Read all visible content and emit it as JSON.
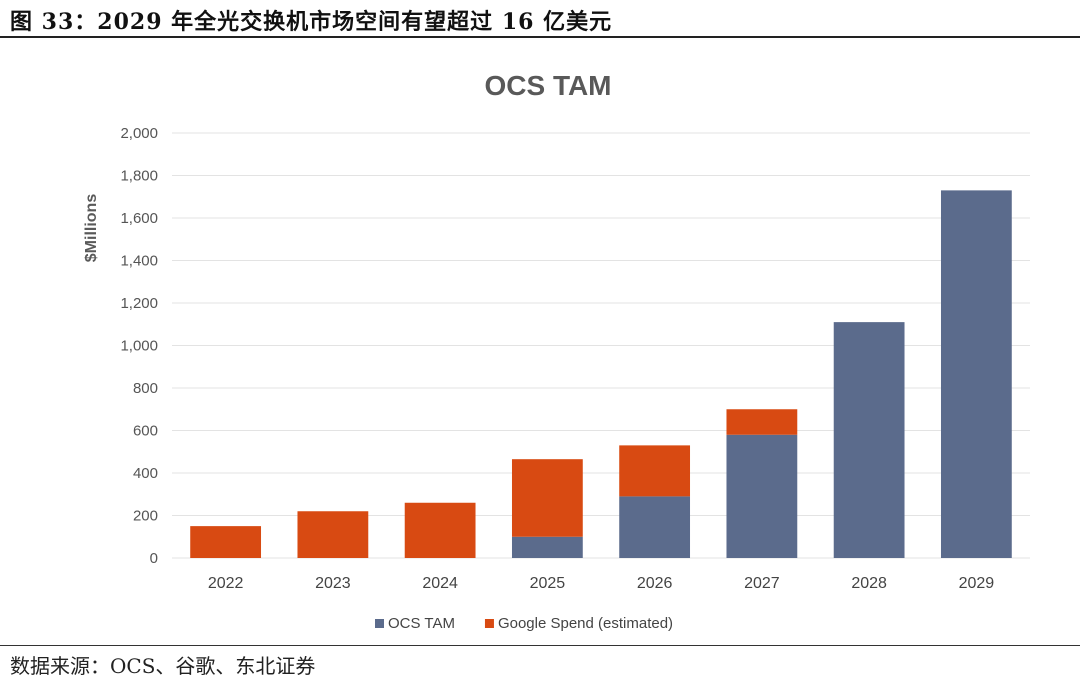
{
  "caption": "图 33：2029 年全光交换机市场空间有望超过 16 亿美元",
  "source": "数据来源：OCS、谷歌、东北证券",
  "colors": {
    "ocs": "#5b6b8c",
    "google": "#d84a12",
    "grid": "#e3e3e3"
  },
  "chart_data": {
    "type": "bar",
    "stacked": true,
    "title": "OCS TAM",
    "ylabel": "$Millions",
    "xlabel": "",
    "categories": [
      "2022",
      "2023",
      "2024",
      "2025",
      "2026",
      "2027",
      "2028",
      "2029"
    ],
    "series": [
      {
        "name": "OCS TAM",
        "values": [
          0,
          0,
          0,
          100,
          290,
          580,
          1110,
          1730
        ]
      },
      {
        "name": "Google Spend (estimated)",
        "values": [
          150,
          220,
          260,
          365,
          240,
          120,
          0,
          0
        ]
      }
    ],
    "ylim": [
      0,
      2000
    ],
    "yticks": [
      "0",
      "200",
      "400",
      "600",
      "800",
      "1,000",
      "1,200",
      "1,400",
      "1,600",
      "1,800",
      "2,000"
    ],
    "grid": true,
    "legend_position": "bottom"
  }
}
